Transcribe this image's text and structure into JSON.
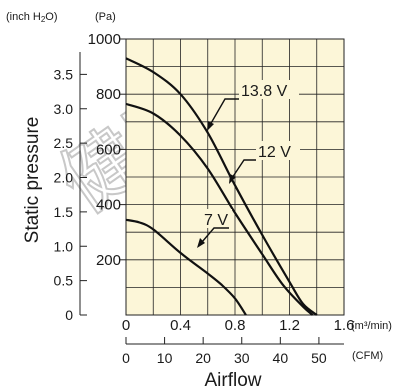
{
  "chart_data": {
    "type": "line",
    "ylabel": "Static pressure",
    "xlabel": "Airflow",
    "unit_inch": "(inch H",
    "unit_inch_sub": "2",
    "unit_inch_end": "O)",
    "unit_pa": "(Pa)",
    "unit_m3": "(m³/min)",
    "unit_cfm": "(CFM)",
    "xlim": [
      0,
      1.6
    ],
    "ylim": [
      0,
      1000
    ],
    "x_ticks": [
      "0",
      "0.4",
      "0.8",
      "1.2",
      "1.6"
    ],
    "pa_ticks": [
      "200",
      "400",
      "600",
      "800",
      "1000"
    ],
    "inch_ticks": [
      "0",
      "0.5",
      "1.0",
      "1.5",
      "2.0",
      "2.5",
      "3.0",
      "3.5"
    ],
    "cfm_ticks": [
      "0",
      "10",
      "20",
      "30",
      "40",
      "50"
    ],
    "series": [
      {
        "name": "13.8 V",
        "x": [
          0,
          0.2,
          0.4,
          0.6,
          0.8,
          1.0,
          1.2,
          1.3,
          1.4
        ],
        "y": [
          930,
          880,
          800,
          660,
          470,
          290,
          120,
          40,
          0
        ]
      },
      {
        "name": "12 V",
        "x": [
          0,
          0.2,
          0.4,
          0.6,
          0.8,
          1.0,
          1.15,
          1.3,
          1.37
        ],
        "y": [
          765,
          730,
          650,
          530,
          370,
          220,
          110,
          30,
          0
        ]
      },
      {
        "name": "7 V",
        "x": [
          0,
          0.1,
          0.2,
          0.4,
          0.6,
          0.7,
          0.8,
          0.88
        ],
        "y": [
          345,
          335,
          310,
          225,
          150,
          110,
          60,
          0
        ]
      }
    ],
    "colors": {
      "background": "#fcf6d8",
      "grid": "#222222",
      "line": "#111111"
    }
  },
  "watermark": "健贤"
}
